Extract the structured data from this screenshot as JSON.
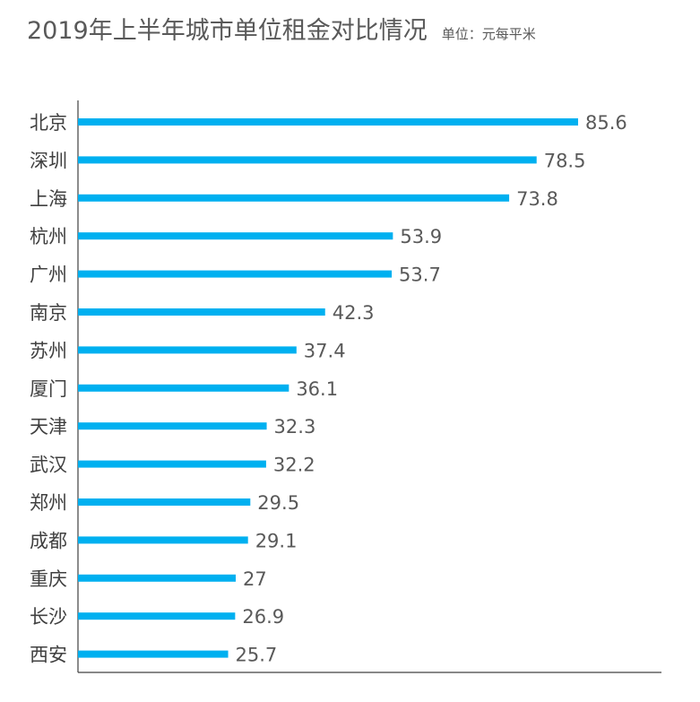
{
  "title": "2019年上半年城市单位租金对比情况",
  "unit": "单位：元每平米",
  "colors": {
    "bar": "#00B0F0",
    "axis": "#404040"
  },
  "chart_data": {
    "type": "bar",
    "orientation": "horizontal",
    "title": "2019年上半年城市单位租金对比情况",
    "unit_label": "单位：元每平米",
    "categories": [
      "北京",
      "深圳",
      "上海",
      "杭州",
      "广州",
      "南京",
      "苏州",
      "厦门",
      "天津",
      "武汉",
      "郑州",
      "成都",
      "重庆",
      "长沙",
      "西安"
    ],
    "values": [
      85.6,
      78.5,
      73.8,
      53.9,
      53.7,
      42.3,
      37.4,
      36.1,
      32.3,
      32.2,
      29.5,
      29.1,
      27,
      26.9,
      25.7
    ],
    "value_labels": [
      "85.6",
      "78.5",
      "73.8",
      "53.9",
      "53.7",
      "42.3",
      "37.4",
      "36.1",
      "32.3",
      "32.2",
      "29.5",
      "29.1",
      "27",
      "26.9",
      "25.7"
    ],
    "grid": false,
    "legend": "none"
  }
}
